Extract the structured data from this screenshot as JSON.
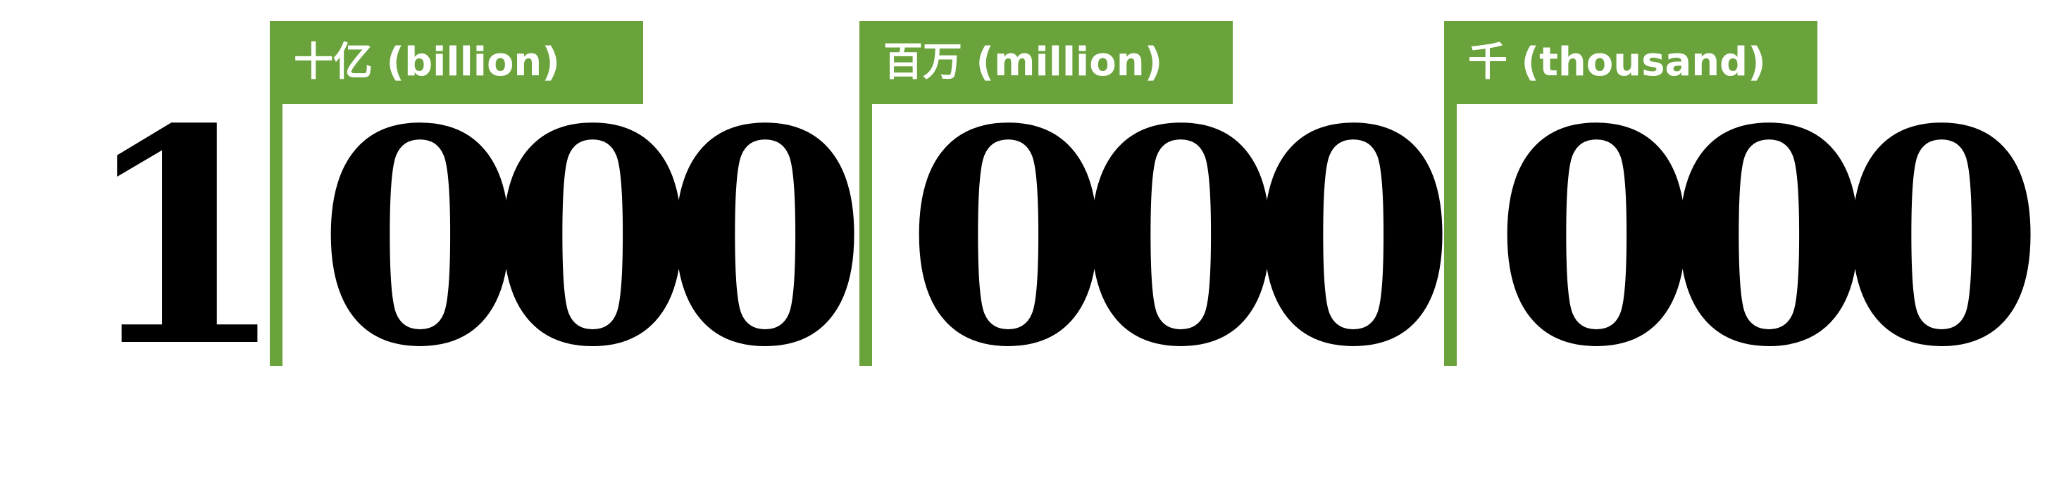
{
  "leading_digit": "1",
  "groups": [
    {
      "label": "十亿 (billion)",
      "digits": [
        "0",
        "0",
        "0"
      ]
    },
    {
      "label": "百万 (million)",
      "digits": [
        "0",
        "0",
        "0"
      ]
    },
    {
      "label": "千 (thousand)",
      "digits": [
        "0",
        "0",
        "0"
      ]
    }
  ],
  "colors": {
    "accent": "#6aa23b",
    "text": "#000000",
    "label_text": "#ffffff"
  }
}
